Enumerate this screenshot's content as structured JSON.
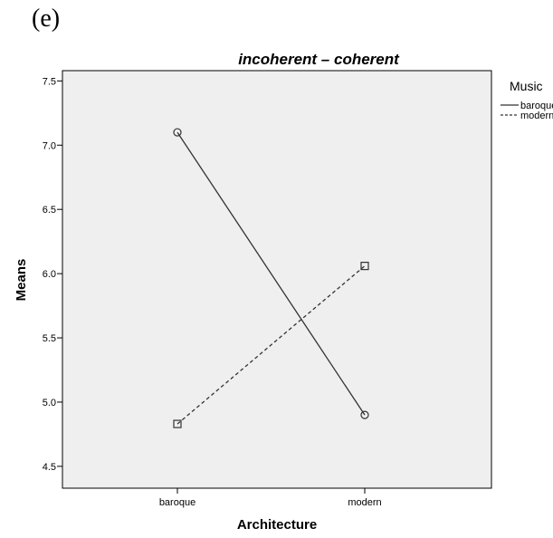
{
  "panel_label": "(e)",
  "chart_data": {
    "type": "line",
    "title": "incoherent – coherent",
    "xlabel": "Architecture",
    "ylabel": "Means",
    "categories": [
      "baroque",
      "modern"
    ],
    "ylim": [
      4.33,
      7.58
    ],
    "yticks": [
      "4.5",
      "5.0",
      "5.5",
      "6.0",
      "6.5",
      "7.0",
      "7.5"
    ],
    "grid": false,
    "legend_title": "Music",
    "legend_position": "right",
    "series": [
      {
        "name": "baroque",
        "values": [
          7.1,
          4.9
        ],
        "line_style": "solid",
        "marker": "circle",
        "color": "#333333"
      },
      {
        "name": "modern",
        "values": [
          4.83,
          6.06
        ],
        "line_style": "dashed",
        "marker": "square",
        "color": "#333333"
      }
    ],
    "plot_background": "#efefef"
  }
}
